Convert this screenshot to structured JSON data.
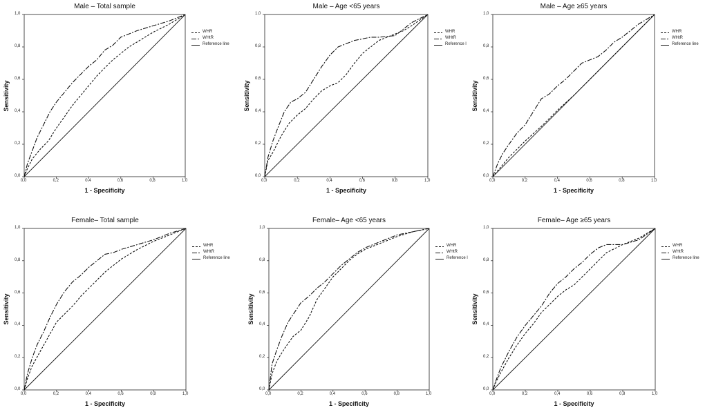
{
  "chart_data": [
    {
      "type": "line",
      "title": "Male – Total sample",
      "xlabel": "1 - Specificity",
      "ylabel": "Sensitivity",
      "xlim": [
        0,
        1
      ],
      "ylim": [
        0,
        1
      ],
      "x_ticks": [
        "0,0",
        "0,2",
        "0,4",
        "0,6",
        "0,8",
        "1,0"
      ],
      "y_ticks": [
        "0,0",
        "0,2",
        "0,4",
        "0,6",
        "0,8",
        "1,0"
      ],
      "legend": [
        "WHR",
        "WHtR",
        "Reference line"
      ],
      "series": [
        {
          "name": "WHR",
          "dash": "3,2",
          "x": [
            0,
            0.02,
            0.05,
            0.1,
            0.15,
            0.2,
            0.25,
            0.3,
            0.35,
            0.4,
            0.45,
            0.5,
            0.55,
            0.6,
            0.65,
            0.7,
            0.8,
            0.9,
            1.0
          ],
          "y": [
            0,
            0.05,
            0.11,
            0.17,
            0.22,
            0.3,
            0.37,
            0.44,
            0.5,
            0.56,
            0.62,
            0.67,
            0.72,
            0.76,
            0.8,
            0.83,
            0.89,
            0.94,
            1.0
          ]
        },
        {
          "name": "WHtR",
          "dash": "7,2,2,2",
          "x": [
            0,
            0.02,
            0.05,
            0.08,
            0.12,
            0.16,
            0.2,
            0.25,
            0.3,
            0.35,
            0.4,
            0.45,
            0.5,
            0.55,
            0.6,
            0.7,
            0.8,
            0.9,
            1.0
          ],
          "y": [
            0,
            0.08,
            0.16,
            0.24,
            0.32,
            0.4,
            0.46,
            0.52,
            0.58,
            0.63,
            0.68,
            0.72,
            0.78,
            0.81,
            0.86,
            0.9,
            0.93,
            0.96,
            1.0
          ]
        },
        {
          "name": "Reference line",
          "dash": "",
          "x": [
            0,
            1
          ],
          "y": [
            0,
            1
          ]
        }
      ]
    },
    {
      "type": "line",
      "title": "Male – Age <65 years",
      "xlabel": "1 - Specificity",
      "ylabel": "Sensitivity",
      "xlim": [
        0,
        1
      ],
      "ylim": [
        0,
        1
      ],
      "x_ticks": [
        "0,0",
        "0,2",
        "0,4",
        "0,6",
        "0,8",
        "1,0"
      ],
      "y_ticks": [
        "0,0",
        "0,2",
        "0,4",
        "0,6",
        "0,8",
        "1,0"
      ],
      "legend": [
        "WHR",
        "WHtR",
        "Reference l"
      ],
      "series": [
        {
          "name": "WHR",
          "dash": "3,2",
          "x": [
            0,
            0.02,
            0.05,
            0.1,
            0.15,
            0.2,
            0.25,
            0.3,
            0.35,
            0.4,
            0.45,
            0.5,
            0.55,
            0.6,
            0.65,
            0.7,
            0.75,
            0.8,
            0.85,
            0.9,
            1.0
          ],
          "y": [
            0,
            0.1,
            0.15,
            0.25,
            0.33,
            0.38,
            0.42,
            0.48,
            0.53,
            0.56,
            0.58,
            0.63,
            0.7,
            0.76,
            0.8,
            0.84,
            0.86,
            0.88,
            0.9,
            0.93,
            1.0
          ]
        },
        {
          "name": "WHtR",
          "dash": "7,2,2,2",
          "x": [
            0,
            0.02,
            0.05,
            0.08,
            0.12,
            0.16,
            0.2,
            0.25,
            0.3,
            0.35,
            0.4,
            0.45,
            0.5,
            0.55,
            0.6,
            0.65,
            0.7,
            0.8,
            0.9,
            1.0
          ],
          "y": [
            0,
            0.12,
            0.22,
            0.3,
            0.4,
            0.46,
            0.48,
            0.52,
            0.6,
            0.68,
            0.75,
            0.8,
            0.82,
            0.84,
            0.85,
            0.86,
            0.86,
            0.87,
            0.95,
            1.0
          ]
        },
        {
          "name": "Reference line",
          "dash": "",
          "x": [
            0,
            1
          ],
          "y": [
            0,
            1
          ]
        }
      ]
    },
    {
      "type": "line",
      "title": "Male – Age ≥65 years",
      "xlabel": "1 - Specificity",
      "ylabel": "Sensitivity",
      "xlim": [
        0,
        1
      ],
      "ylim": [
        0,
        1
      ],
      "x_ticks": [
        "0,0",
        "0,2",
        "0,4",
        "0,6",
        "0,8",
        "1,0"
      ],
      "y_ticks": [
        "0,0",
        "0,2",
        "0,4",
        "0,6",
        "0,8",
        "1,0"
      ],
      "legend": [
        "WHR",
        "WHtR",
        "Reference line"
      ],
      "series": [
        {
          "name": "WHR",
          "dash": "3,2",
          "x": [
            0,
            0.05,
            0.1,
            0.15,
            0.2,
            0.3,
            0.4,
            0.5,
            0.6,
            0.7,
            0.8,
            0.9,
            1.0
          ],
          "y": [
            0,
            0.06,
            0.12,
            0.17,
            0.22,
            0.31,
            0.41,
            0.5,
            0.6,
            0.7,
            0.8,
            0.9,
            1.0
          ]
        },
        {
          "name": "WHtR",
          "dash": "7,2,2,2",
          "x": [
            0,
            0.03,
            0.06,
            0.1,
            0.15,
            0.2,
            0.25,
            0.3,
            0.35,
            0.4,
            0.45,
            0.5,
            0.55,
            0.6,
            0.65,
            0.7,
            0.75,
            0.8,
            0.85,
            0.9,
            0.95,
            1.0
          ],
          "y": [
            0,
            0.08,
            0.14,
            0.2,
            0.27,
            0.32,
            0.4,
            0.48,
            0.51,
            0.56,
            0.6,
            0.65,
            0.7,
            0.72,
            0.74,
            0.78,
            0.83,
            0.86,
            0.9,
            0.94,
            0.97,
            1.0
          ]
        },
        {
          "name": "Reference line",
          "dash": "",
          "x": [
            0,
            1
          ],
          "y": [
            0,
            1
          ]
        }
      ]
    },
    {
      "type": "line",
      "title": "Female– Total sample",
      "xlabel": "1 - Specificity",
      "ylabel": "Sensitivity",
      "xlim": [
        0,
        1
      ],
      "ylim": [
        0,
        1
      ],
      "x_ticks": [
        "0,0",
        "0,2",
        "0,4",
        "0,6",
        "0,8",
        "1,0"
      ],
      "y_ticks": [
        "0,0",
        "0,2",
        "0,4",
        "0,6",
        "0,8",
        "1,0"
      ],
      "legend": [
        "WHR",
        "WHtR",
        "Reference line"
      ],
      "series": [
        {
          "name": "WHR",
          "dash": "3,2",
          "x": [
            0,
            0.02,
            0.05,
            0.1,
            0.15,
            0.2,
            0.25,
            0.3,
            0.35,
            0.4,
            0.45,
            0.5,
            0.55,
            0.6,
            0.7,
            0.8,
            0.9,
            1.0
          ],
          "y": [
            0,
            0.07,
            0.15,
            0.24,
            0.33,
            0.42,
            0.47,
            0.52,
            0.58,
            0.63,
            0.68,
            0.73,
            0.77,
            0.81,
            0.87,
            0.92,
            0.96,
            1.0
          ]
        },
        {
          "name": "WHtR",
          "dash": "7,2,2,2",
          "x": [
            0,
            0.02,
            0.05,
            0.08,
            0.12,
            0.16,
            0.2,
            0.25,
            0.3,
            0.35,
            0.4,
            0.45,
            0.5,
            0.55,
            0.6,
            0.7,
            0.8,
            0.9,
            1.0
          ],
          "y": [
            0,
            0.1,
            0.2,
            0.28,
            0.36,
            0.45,
            0.53,
            0.61,
            0.67,
            0.71,
            0.76,
            0.8,
            0.84,
            0.85,
            0.87,
            0.9,
            0.93,
            0.97,
            1.0
          ]
        },
        {
          "name": "Reference line",
          "dash": "",
          "x": [
            0,
            1
          ],
          "y": [
            0,
            1
          ]
        }
      ]
    },
    {
      "type": "line",
      "title": "Female– Age <65 years",
      "xlabel": "1 - Specificity",
      "ylabel": "Sensitivity",
      "xlim": [
        0,
        1
      ],
      "ylim": [
        0,
        1
      ],
      "x_ticks": [
        "0,0",
        "0,2",
        "0,4",
        "0,6",
        "0,8",
        "1,0"
      ],
      "y_ticks": [
        "0,0",
        "0,2",
        "0,4",
        "0,6",
        "0,8",
        "1,0"
      ],
      "legend": [
        "WHR",
        "WHtR",
        "Reference l"
      ],
      "series": [
        {
          "name": "WHR",
          "dash": "3,2",
          "x": [
            0,
            0.02,
            0.05,
            0.1,
            0.15,
            0.2,
            0.25,
            0.3,
            0.35,
            0.4,
            0.45,
            0.5,
            0.55,
            0.6,
            0.7,
            0.8,
            0.9,
            1.0
          ],
          "y": [
            0,
            0.1,
            0.18,
            0.26,
            0.33,
            0.37,
            0.45,
            0.56,
            0.63,
            0.7,
            0.75,
            0.8,
            0.84,
            0.87,
            0.91,
            0.95,
            0.98,
            1.0
          ]
        },
        {
          "name": "WHtR",
          "dash": "7,2,2,2",
          "x": [
            0,
            0.02,
            0.05,
            0.08,
            0.12,
            0.16,
            0.2,
            0.25,
            0.3,
            0.35,
            0.4,
            0.45,
            0.5,
            0.55,
            0.6,
            0.7,
            0.8,
            0.9,
            1.0
          ],
          "y": [
            0,
            0.16,
            0.25,
            0.33,
            0.42,
            0.48,
            0.54,
            0.58,
            0.63,
            0.67,
            0.72,
            0.77,
            0.81,
            0.85,
            0.88,
            0.92,
            0.96,
            0.98,
            1.0
          ]
        },
        {
          "name": "Reference line",
          "dash": "",
          "x": [
            0,
            1
          ],
          "y": [
            0,
            1
          ]
        }
      ]
    },
    {
      "type": "line",
      "title": "Female– Age ≥65 years",
      "xlabel": "1 - Specificity",
      "ylabel": "Sensitivity",
      "xlim": [
        0,
        1
      ],
      "ylim": [
        0,
        1
      ],
      "x_ticks": [
        "0,0",
        "0,2",
        "0,4",
        "0,6",
        "0,8",
        "1,0"
      ],
      "y_ticks": [
        "0,0",
        "0,2",
        "0,4",
        "0,6",
        "0,8",
        "1,0"
      ],
      "legend": [
        "WHR",
        "WHtR",
        "Reference line"
      ],
      "series": [
        {
          "name": "WHR",
          "dash": "3,2",
          "x": [
            0,
            0.02,
            0.05,
            0.1,
            0.15,
            0.2,
            0.25,
            0.3,
            0.35,
            0.4,
            0.45,
            0.5,
            0.55,
            0.6,
            0.65,
            0.7,
            0.8,
            0.9,
            1.0
          ],
          "y": [
            0,
            0.05,
            0.11,
            0.2,
            0.28,
            0.35,
            0.41,
            0.48,
            0.53,
            0.58,
            0.62,
            0.65,
            0.7,
            0.75,
            0.8,
            0.85,
            0.9,
            0.94,
            1.0
          ]
        },
        {
          "name": "WHtR",
          "dash": "7,2,2,2",
          "x": [
            0,
            0.02,
            0.05,
            0.1,
            0.15,
            0.2,
            0.25,
            0.3,
            0.35,
            0.4,
            0.45,
            0.5,
            0.55,
            0.6,
            0.65,
            0.7,
            0.8,
            0.9,
            1.0
          ],
          "y": [
            0,
            0.06,
            0.14,
            0.24,
            0.33,
            0.4,
            0.46,
            0.52,
            0.6,
            0.66,
            0.7,
            0.75,
            0.79,
            0.84,
            0.88,
            0.9,
            0.9,
            0.93,
            1.0
          ]
        },
        {
          "name": "Reference line",
          "dash": "",
          "x": [
            0,
            1
          ],
          "y": [
            0,
            1
          ]
        }
      ]
    }
  ]
}
